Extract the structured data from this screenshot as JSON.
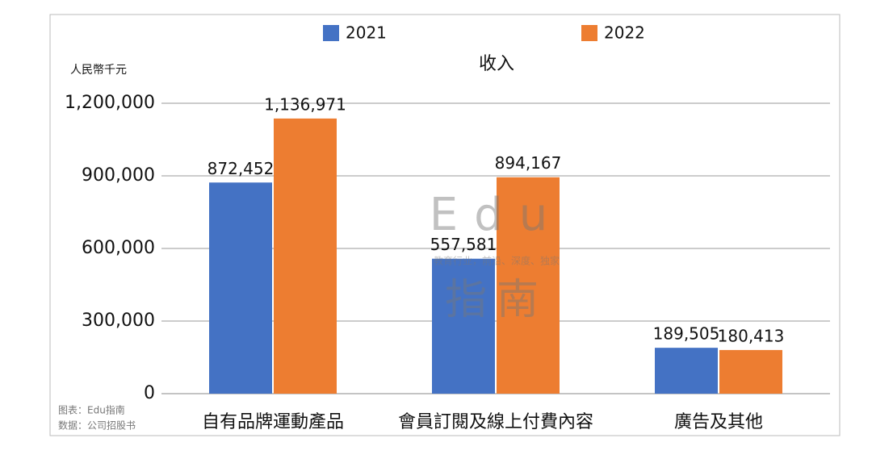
{
  "chart_data": {
    "type": "bar",
    "title": "收入",
    "y_axis_label": "人民幣千元",
    "categories": [
      "自有品牌運動產品",
      "會員訂閱及線上付費內容",
      "廣告及其他"
    ],
    "series": [
      {
        "name": "2021",
        "color": "#4472c4",
        "values": [
          872452,
          557581,
          189505
        ],
        "value_labels": [
          "872,452",
          "557,581",
          "189,505"
        ]
      },
      {
        "name": "2022",
        "color": "#ed7d31",
        "values": [
          1136971,
          894167,
          180413
        ],
        "value_labels": [
          "1,136,971",
          "894,167",
          "180,413"
        ]
      }
    ],
    "ylim": [
      0,
      1200000
    ],
    "yticks": [
      0,
      {
        "value": 300000,
        "label": "300,000"
      },
      {
        "value": 600000,
        "label": "600,000"
      },
      {
        "value": 900000,
        "label": "900,000"
      },
      {
        "value": 1200000,
        "label": "1,200,000"
      }
    ],
    "grid": true,
    "legend": "top",
    "notes": [
      "图表：Edu指南",
      "数据：公司招股书"
    ],
    "watermark": [
      "Edu",
      "教育行业，前沿、深度、独家",
      "指南"
    ]
  }
}
